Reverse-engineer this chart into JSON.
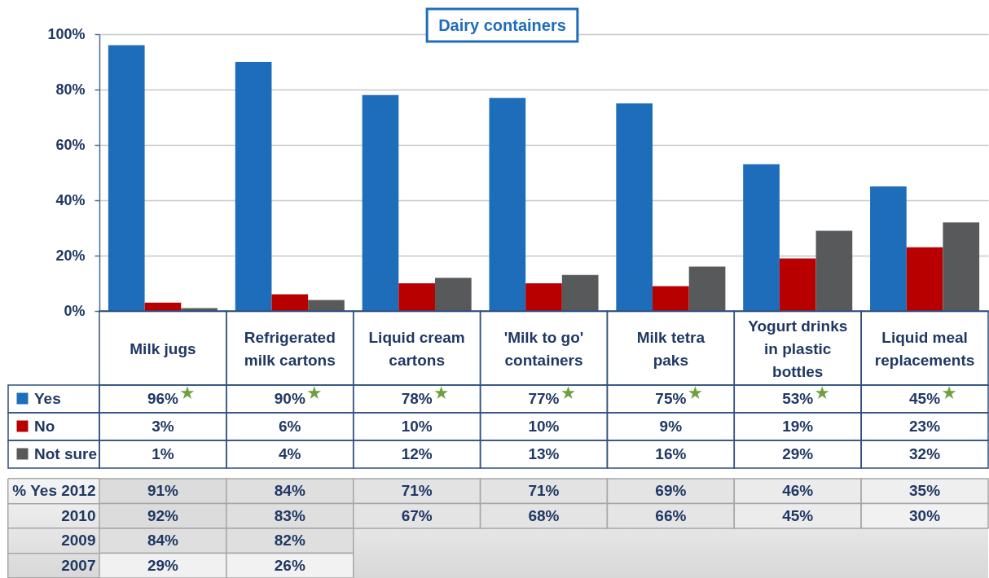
{
  "chart_data": [
    {
      "type": "bar",
      "title": "Dairy containers",
      "categories": [
        "Milk jugs",
        "Refrigerated milk cartons",
        "Liquid cream cartons",
        "'Milk to go' containers",
        "Milk tetra paks",
        "Yogurt drinks in plastic bottles",
        "Liquid meal replacements"
      ],
      "series": [
        {
          "name": "Yes",
          "color": "#1e6dbb",
          "values": [
            96,
            90,
            78,
            77,
            75,
            53,
            45
          ],
          "value_labels": [
            "96%",
            "90%",
            "78%",
            "77%",
            "75%",
            "53%",
            "45%"
          ]
        },
        {
          "name": "No",
          "color": "#b80000",
          "values": [
            3,
            6,
            10,
            10,
            9,
            19,
            23
          ],
          "value_labels": [
            "3%",
            "6%",
            "10%",
            "10%",
            "9%",
            "19%",
            "23%"
          ]
        },
        {
          "name": "Not sure",
          "color": "#58595b",
          "values": [
            1,
            4,
            12,
            13,
            16,
            29,
            32
          ],
          "value_labels": [
            "1%",
            "4%",
            "12%",
            "13%",
            "16%",
            "29%",
            "32%"
          ]
        }
      ],
      "ylim": [
        0,
        100
      ],
      "yticks": [
        {
          "value": 0,
          "label": "0%"
        },
        {
          "value": 20,
          "label": "20%"
        },
        {
          "value": 40,
          "label": "40%"
        },
        {
          "value": 60,
          "label": "60%"
        },
        {
          "value": 80,
          "label": "80%"
        },
        {
          "value": 100,
          "label": "100%"
        }
      ],
      "grid": "y",
      "legend": "bottom left"
    },
    {
      "type": "heatmap",
      "categories": [
        null,
        null,
        null,
        null,
        null,
        null,
        null
      ],
      "y_categories": [
        "% Yes 2012",
        "2010",
        "2009",
        "2007"
      ],
      "cells": [
        [
          91,
          84,
          71,
          71,
          69,
          46,
          35
        ],
        [
          92,
          83,
          67,
          68,
          66,
          45,
          30
        ],
        [
          84,
          82,
          null,
          null,
          null,
          null,
          null
        ],
        [
          29,
          26,
          null,
          null,
          null,
          null,
          null
        ]
      ],
      "cell_labels": [
        [
          "91%",
          "84%",
          "71%",
          "71%",
          "69%",
          "46%",
          "35%"
        ],
        [
          "92%",
          "83%",
          "67%",
          "68%",
          "66%",
          "45%",
          "30%"
        ],
        [
          "84%",
          "82%",
          null,
          null,
          null,
          null,
          null
        ],
        [
          "29%",
          "26%",
          null,
          null,
          null,
          null,
          null
        ]
      ]
    }
  ]
}
